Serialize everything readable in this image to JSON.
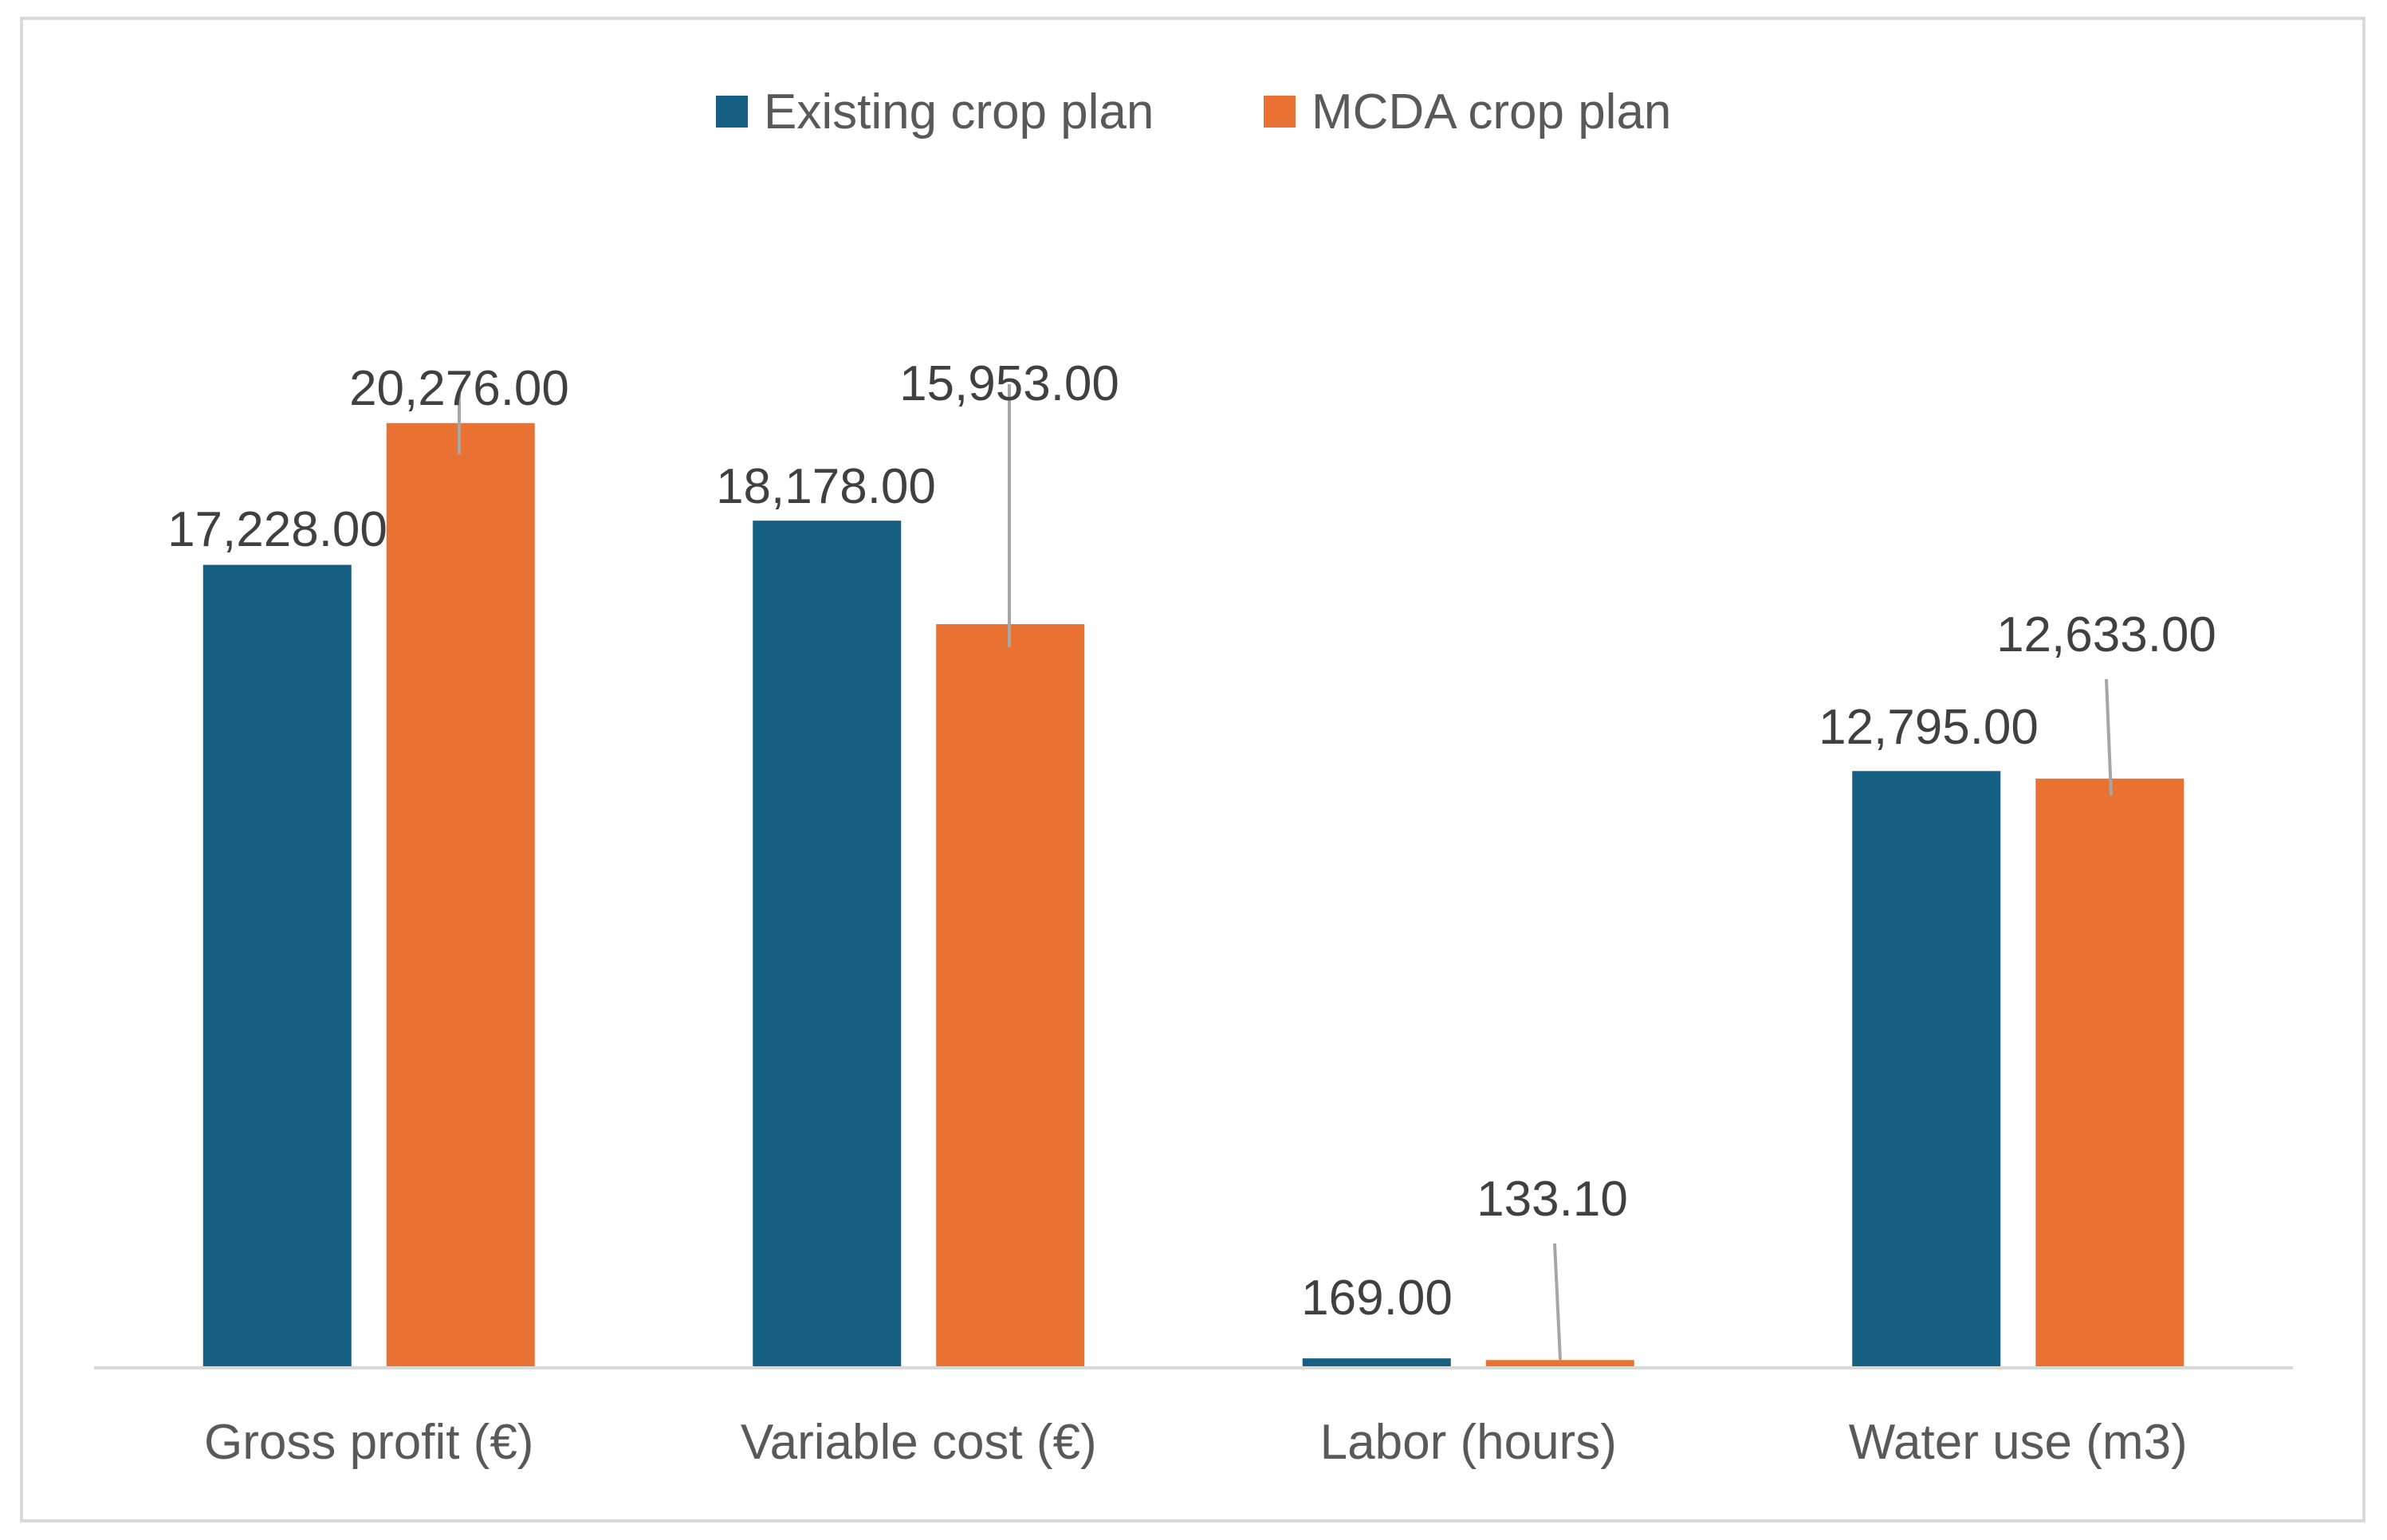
{
  "chart_data": {
    "type": "bar",
    "title": "",
    "xlabel": "",
    "ylabel": "",
    "categories": [
      "Gross profit (€)",
      "Variable cost (€)",
      "Labor (hours)",
      "Water use (m3)"
    ],
    "series": [
      {
        "name": "Existing crop plan",
        "color": "#155f82",
        "values": [
          17228,
          18178,
          169,
          12795
        ],
        "labels": [
          "17,228.00",
          "18,178.00",
          "169.00",
          "12,795.00"
        ]
      },
      {
        "name": "MCDA crop plan",
        "color": "#e97132",
        "values": [
          20276,
          15953,
          133.1,
          12633
        ],
        "labels": [
          "20,276.00",
          "15,953.00",
          "133.10",
          "12,633.00"
        ]
      }
    ],
    "ylim": [
      0,
      28000
    ],
    "grid": false,
    "legend": "top-center"
  },
  "colors": {
    "axis": "#d9d9d9",
    "leader_line": "#a6a6a6",
    "text": "#595959",
    "data_label": "#404040"
  }
}
